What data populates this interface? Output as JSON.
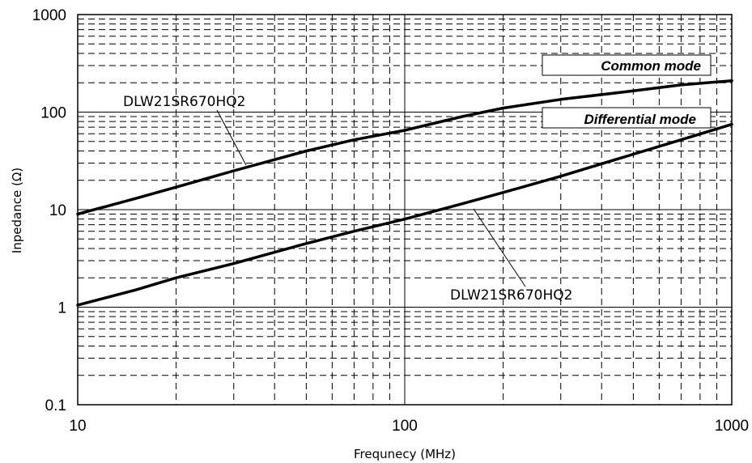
{
  "chart_data": {
    "type": "line",
    "x_scale": "log",
    "y_scale": "log",
    "xlim": [
      10,
      1000
    ],
    "ylim": [
      0.1,
      1000
    ],
    "xlabel": "Frequnecy (MHz)",
    "ylabel": "Inpedance (Ω)",
    "x_ticks": [
      "10",
      "100",
      "1000"
    ],
    "y_ticks": [
      "0.1",
      "1",
      "10",
      "100",
      "1000"
    ],
    "grid": {
      "major": "solid",
      "minor": "dashed"
    },
    "series": [
      {
        "name": "Common mode",
        "label": "DLW21SR670HQ2",
        "color": "#000000",
        "x": [
          10,
          15,
          20,
          30,
          50,
          70,
          100,
          150,
          200,
          300,
          500,
          700,
          1000
        ],
        "y": [
          9,
          13,
          17,
          25,
          40,
          52,
          65,
          90,
          110,
          135,
          165,
          190,
          210
        ]
      },
      {
        "name": "Differential mode",
        "label": "DLW21SR670HQ2",
        "color": "#000000",
        "x": [
          10,
          15,
          20,
          30,
          50,
          70,
          100,
          150,
          200,
          300,
          500,
          700,
          1000
        ],
        "y": [
          1.05,
          1.5,
          2.0,
          2.8,
          4.5,
          6.0,
          8.0,
          11.5,
          15,
          22,
          37,
          52,
          75
        ]
      }
    ],
    "legend": [
      {
        "text": "Common mode"
      },
      {
        "text": "Differential mode"
      }
    ]
  }
}
